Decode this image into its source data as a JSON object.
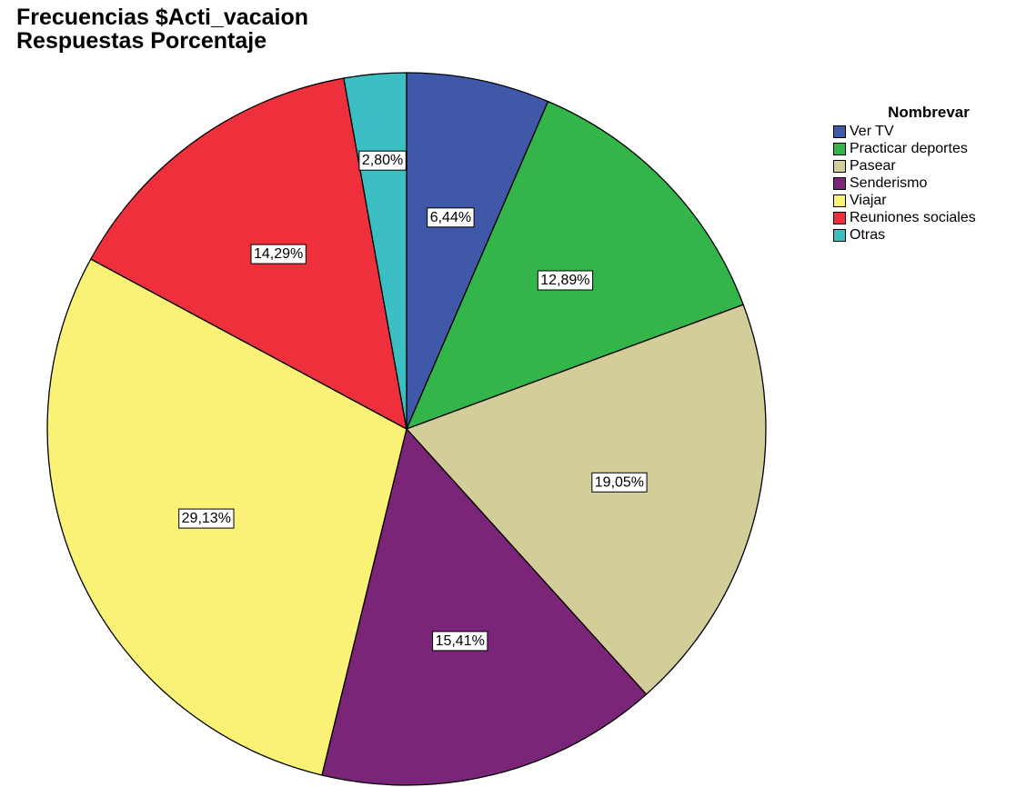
{
  "chart_data": {
    "type": "pie",
    "title_lines": [
      "Frecuencias $Acti_vacaion",
      "Respuestas Porcentaje"
    ],
    "legend_title": "Nombrevar",
    "legend_placement": "top-right",
    "slices": [
      {
        "label": "Ver TV",
        "value": 6.44,
        "display": "6,44%",
        "color": "#3f58a8"
      },
      {
        "label": "Practicar deportes",
        "value": 12.89,
        "display": "12,89%",
        "color": "#34b54a"
      },
      {
        "label": "Pasear",
        "value": 19.05,
        "display": "19,05%",
        "color": "#d3cd9a"
      },
      {
        "label": "Senderismo",
        "value": 15.41,
        "display": "15,41%",
        "color": "#7b2578"
      },
      {
        "label": "Viajar",
        "value": 29.13,
        "display": "29,13%",
        "color": "#f9f277"
      },
      {
        "label": "Reuniones sociales",
        "value": 14.29,
        "display": "14,29%",
        "color": "#ee303d"
      },
      {
        "label": "Otras",
        "value": 2.8,
        "display": "2,80%",
        "color": "#3cbfc2"
      }
    ]
  }
}
